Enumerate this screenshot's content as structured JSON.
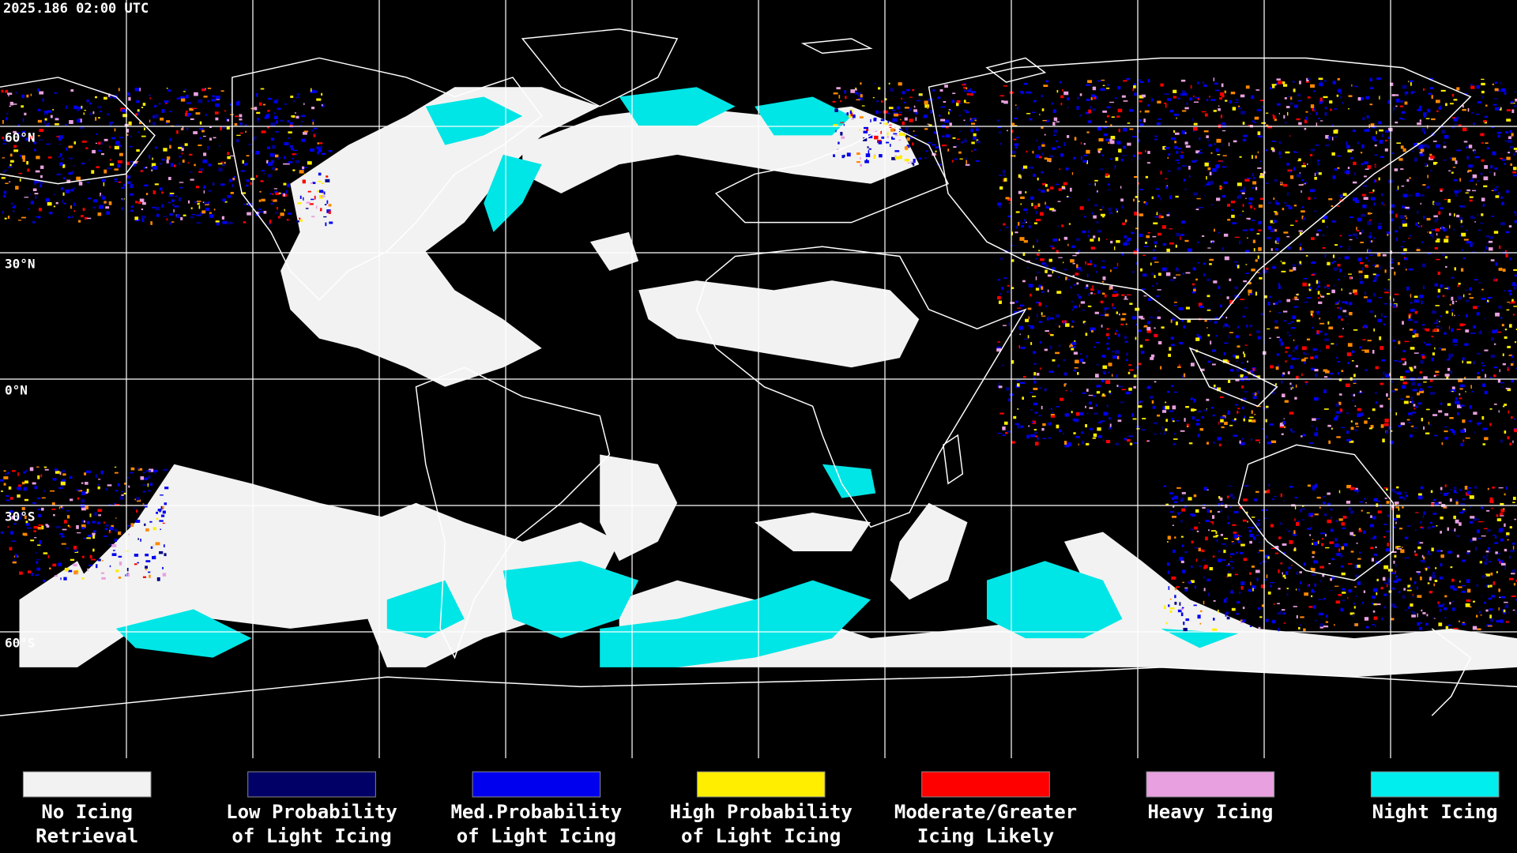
{
  "timestamp": "2025.186 02:00 UTC",
  "lat_labels": [
    "60°N",
    "30°N",
    "0°N",
    "30°S",
    "60°S"
  ],
  "legend": [
    {
      "color": "#f2f2f2",
      "label": [
        "No Icing",
        "Retrieval"
      ]
    },
    {
      "color": "#000066",
      "label": [
        "Low Probability",
        "of Light Icing"
      ]
    },
    {
      "color": "#0000ee",
      "label": [
        "Med.Probability",
        "of Light Icing"
      ]
    },
    {
      "color": "#ffee00",
      "label": [
        "High Probability",
        "of Light Icing"
      ]
    },
    {
      "color": "#ff0000",
      "label": [
        "Moderate/Greater",
        "Icing Likely"
      ]
    },
    {
      "color": "#e8a0e0",
      "label": [
        "Heavy Icing"
      ]
    },
    {
      "color": "#00eeee",
      "label": [
        "Night Icing"
      ]
    }
  ]
}
